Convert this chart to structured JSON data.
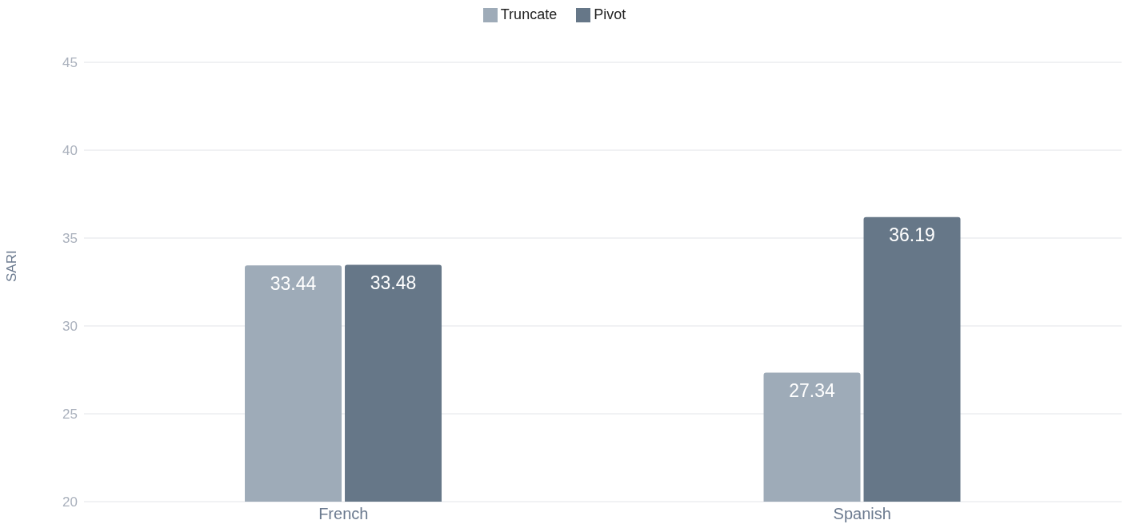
{
  "chart_data": {
    "type": "bar",
    "ylabel": "SARI",
    "categories": [
      "French",
      "Spanish"
    ],
    "series": [
      {
        "name": "Truncate",
        "color": "#9eabb8",
        "values": [
          33.44,
          27.34
        ]
      },
      {
        "name": "Pivot",
        "color": "#667788",
        "values": [
          33.48,
          36.19
        ]
      }
    ],
    "ylim": [
      20,
      45
    ],
    "yticks": [
      20,
      25,
      30,
      35,
      40,
      45
    ],
    "grid": "y",
    "legend": "top",
    "data_labels": true
  }
}
